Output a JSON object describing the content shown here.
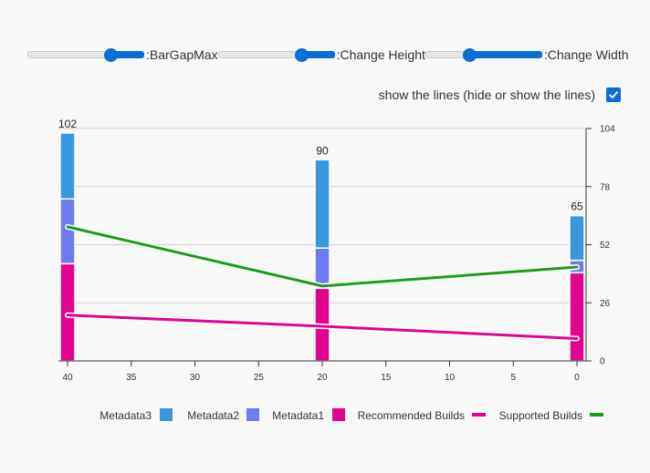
{
  "controls": {
    "sliders": [
      {
        "label": ":BarGapMax",
        "value": 0.72
      },
      {
        "label": ":Change Height",
        "value": 0.72
      },
      {
        "label": ":Change Width",
        "value": 0.38
      }
    ],
    "lines_toggle": {
      "label": "show the lines (hide or show the lines)",
      "checked": true
    }
  },
  "colors": {
    "metadata3": "#3a97dd",
    "metadata2": "#6f7cf0",
    "metadata1": "#e0048f",
    "recommended": "#e0048f",
    "supported": "#1a9e1a",
    "grid": "#d0d0d0",
    "axis": "#333333"
  },
  "chart_data": {
    "type": "bar",
    "stacked": true,
    "title": "",
    "x": [
      40,
      20,
      0
    ],
    "x_ticks": [
      40,
      35,
      30,
      25,
      20,
      15,
      10,
      5,
      0
    ],
    "xlim": [
      40,
      0
    ],
    "y_ticks": [
      0,
      26,
      52,
      78,
      104
    ],
    "ylim": [
      0,
      104
    ],
    "y_axis_position": "right",
    "grid": true,
    "totals": [
      102,
      90,
      65
    ],
    "series": [
      {
        "name": "Metadata3",
        "kind": "bar",
        "color": "#3a97dd",
        "values": [
          29.5,
          39.5,
          20
        ]
      },
      {
        "name": "Metadata2",
        "kind": "bar",
        "color": "#6f7cf0",
        "values": [
          29,
          18,
          5.5
        ]
      },
      {
        "name": "Metadata1",
        "kind": "bar",
        "color": "#e0048f",
        "values": [
          43.5,
          32.5,
          39.5
        ]
      },
      {
        "name": "Recommended Builds",
        "kind": "line",
        "color": "#e0048f",
        "values": [
          20.5,
          15.5,
          10
        ]
      },
      {
        "name": "Supported Builds",
        "kind": "line",
        "color": "#1a9e1a",
        "values": [
          60,
          33.5,
          42
        ]
      }
    ],
    "legend": {
      "placement": "bottom"
    }
  }
}
